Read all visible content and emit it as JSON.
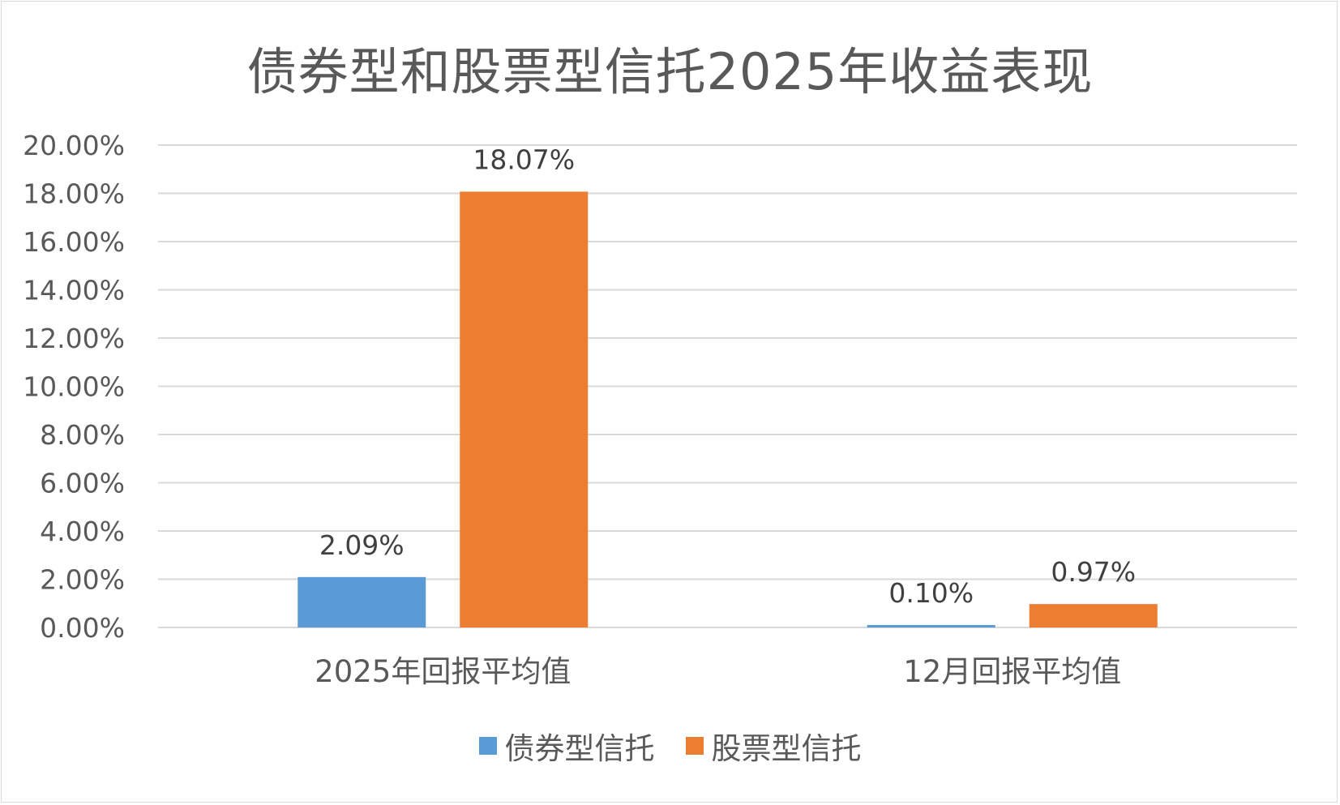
{
  "chart_data": {
    "type": "bar",
    "title": "债券型和股票型信托2025年收益表现",
    "categories": [
      "2025年回报平均值",
      "12月回报平均值"
    ],
    "series": [
      {
        "name": "债券型信托",
        "color": "#5b9bd5",
        "values": [
          2.09,
          0.1
        ],
        "labels": [
          "2.09%",
          "0.10%"
        ]
      },
      {
        "name": "股票型信托",
        "color": "#ed7d31",
        "values": [
          18.07,
          0.97
        ],
        "labels": [
          "18.07%",
          "0.97%"
        ]
      }
    ],
    "ylim": [
      0,
      20
    ],
    "yticks": [
      "0.00%",
      "2.00%",
      "4.00%",
      "6.00%",
      "8.00%",
      "10.00%",
      "12.00%",
      "14.00%",
      "16.00%",
      "18.00%",
      "20.00%"
    ],
    "grid": true,
    "legend_position": "bottom",
    "xlabel": "",
    "ylabel": ""
  }
}
